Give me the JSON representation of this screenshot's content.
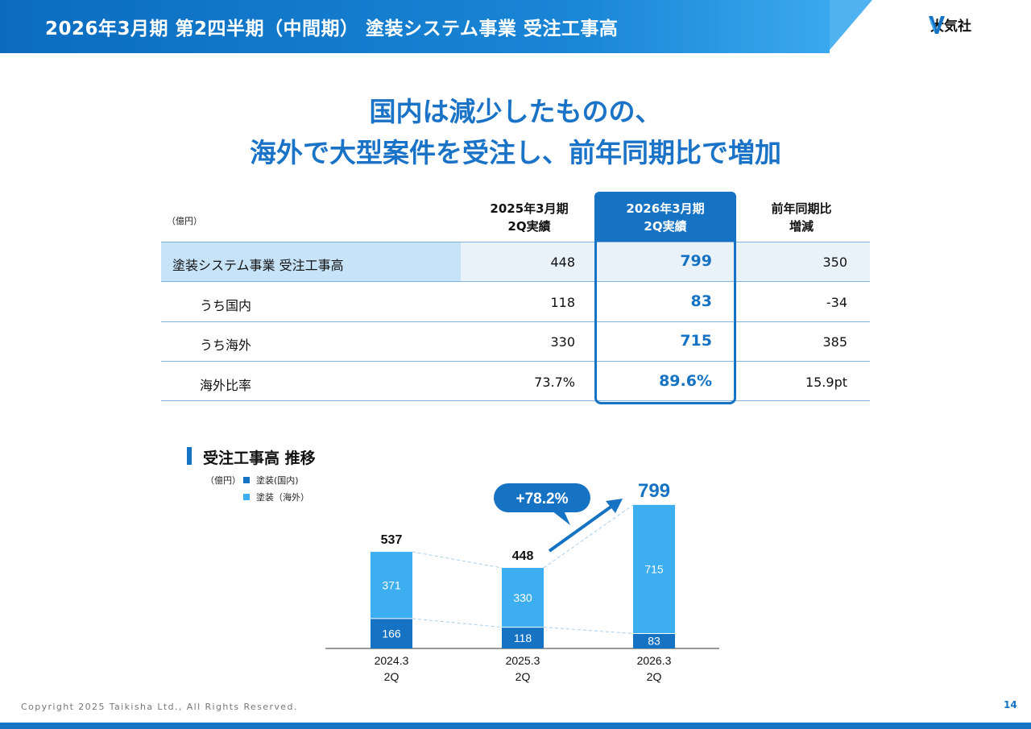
{
  "header": {
    "title": "2026年3月期 第2四半期（中間期） 塗装システム事業 受注工事高",
    "logo_text": "大気社",
    "brand_color": "#1673c4"
  },
  "headline": {
    "line1": "国内は減少したものの、",
    "line2": "海外で大型案件を受注し、前年同期比で増加"
  },
  "table": {
    "unit": "（億円）",
    "columns": {
      "prev_line1": "2025年3月期",
      "prev_line2": "2Q実績",
      "curr_line1": "2026年3月期",
      "curr_line2": "2Q実績",
      "diff_line1": "前年同期比",
      "diff_line2": "増減"
    },
    "rows": [
      {
        "label": "塗装システム事業  受注工事高",
        "prev": "448",
        "curr": "799",
        "diff": "350"
      },
      {
        "label": "うち国内",
        "prev": "118",
        "curr": "83",
        "diff": "-34"
      },
      {
        "label": "うち海外",
        "prev": "330",
        "curr": "715",
        "diff": "385"
      },
      {
        "label": "海外比率",
        "prev": "73.7%",
        "curr": "89.6%",
        "diff": "15.9pt"
      }
    ]
  },
  "chart_section": {
    "title": "受注工事高 推移",
    "unit": "（億円）",
    "legend_domestic": "塗装(国内)",
    "legend_overseas": "塗装（海外）"
  },
  "chart_data": {
    "type": "bar",
    "stacked": true,
    "categories": [
      "2024.3\n2Q",
      "2025.3\n2Q",
      "2026.3\n2Q"
    ],
    "series": [
      {
        "name": "塗装(国内)",
        "values": [
          166,
          118,
          83
        ],
        "color": "#1673c4"
      },
      {
        "name": "塗装（海外）",
        "values": [
          371,
          330,
          715
        ],
        "color": "#3daef0"
      }
    ],
    "totals": [
      537,
      448,
      799
    ],
    "annotation": "+78.2%"
  },
  "footer": {
    "copyright": "Copyright  2025 Taikisha Ltd., All Rights Reserved.",
    "page": "14"
  }
}
